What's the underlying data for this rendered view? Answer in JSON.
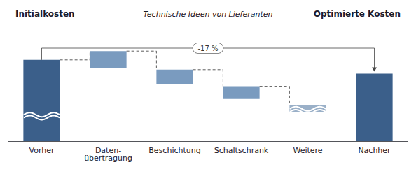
{
  "chart_data": {
    "type": "waterfall",
    "categories": [
      "Vorher",
      "Daten-\nübertragung",
      "Beschichtung",
      "Schaltschrank",
      "Weitere",
      "Nachher"
    ],
    "bottoms": [
      0,
      75,
      58,
      43,
      30,
      0
    ],
    "values": [
      83,
      17,
      15,
      13,
      7,
      69
    ],
    "colors": [
      "#3b5f8a",
      "#7a9bbf",
      "#7a9bbf",
      "#7a9bbf",
      "#9ab0c8",
      "#3b5f8a"
    ],
    "ylim": [
      0,
      110
    ],
    "tick_labels": "x",
    "grid": false,
    "headers": [
      "Initialkosten",
      "Technische Ideen von Lieferanten",
      "Optimierte Kosten"
    ],
    "bracket": {
      "from": "Vorher",
      "to": "Nachher",
      "y": 95,
      "label": "-17 %"
    },
    "breaks": [
      {
        "category": "Vorher",
        "y": 27
      },
      {
        "category": "Weitere",
        "y": 33
      }
    ]
  }
}
